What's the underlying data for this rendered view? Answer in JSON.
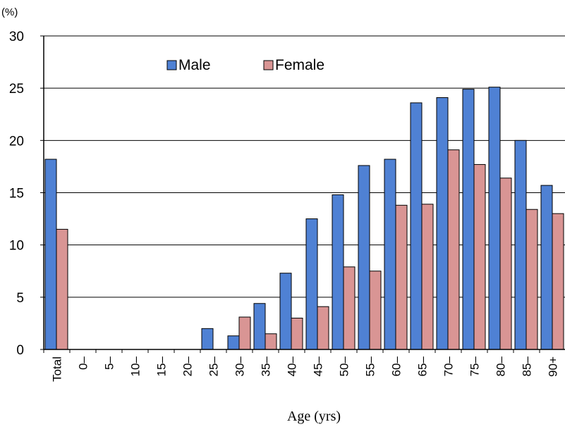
{
  "chart_data": {
    "type": "bar",
    "unit_label": "(%)",
    "xlabel": "Age (yrs)",
    "ylabel": "",
    "ylim": [
      0,
      30
    ],
    "yticks": [
      0,
      5,
      10,
      15,
      20,
      25,
      30
    ],
    "grid": true,
    "legend_position": "top-center",
    "categories": [
      "Total",
      "0–",
      "5–",
      "10–",
      "15–",
      "20–",
      "25–",
      "30–",
      "35–",
      "40–",
      "45–",
      "50–",
      "55–",
      "60–",
      "65–",
      "70–",
      "75–",
      "80–",
      "85–",
      "90+"
    ],
    "series": [
      {
        "name": "Male",
        "color": "#4f81d4",
        "values": [
          18.2,
          0,
          0,
          0,
          0,
          0,
          2.0,
          1.3,
          4.4,
          7.3,
          12.5,
          14.8,
          17.6,
          18.2,
          23.6,
          24.1,
          24.9,
          25.1,
          20.0,
          15.7
        ]
      },
      {
        "name": "Female",
        "color": "#d99594",
        "values": [
          11.5,
          0,
          0,
          0,
          0,
          0,
          0,
          3.1,
          1.5,
          3.0,
          4.1,
          7.9,
          7.5,
          13.8,
          13.9,
          19.1,
          17.7,
          16.4,
          13.4,
          13.0
        ]
      }
    ]
  }
}
